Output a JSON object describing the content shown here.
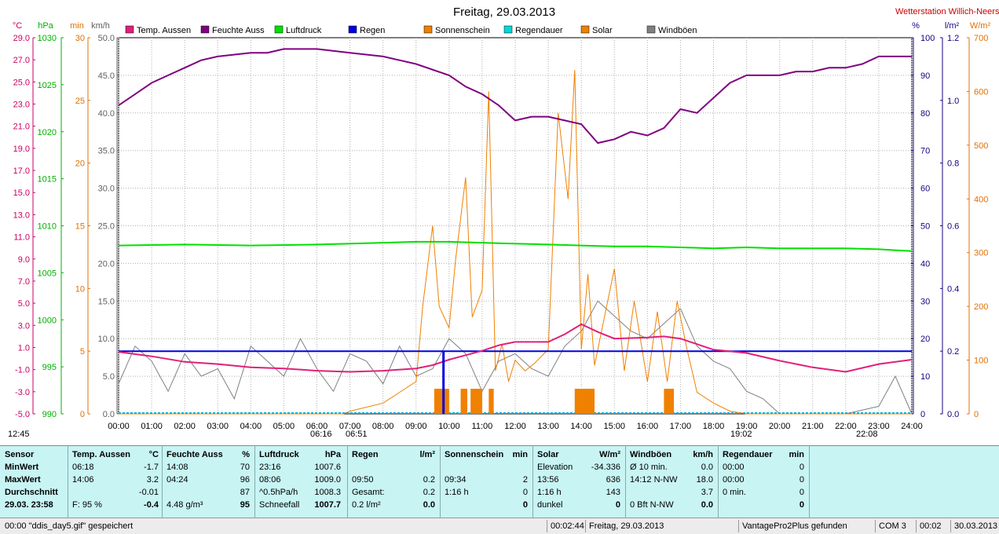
{
  "chart_data": {
    "type": "line",
    "title": "Freitag, 29.03.2013",
    "station": "Wetterstation Willich-Neersen",
    "x_ticks": [
      "00:00",
      "01:00",
      "02:00",
      "03:00",
      "04:00",
      "05:00",
      "06:00",
      "07:00",
      "08:00",
      "09:00",
      "10:00",
      "11:00",
      "12:00",
      "13:00",
      "14:00",
      "15:00",
      "16:00",
      "17:00",
      "18:00",
      "19:00",
      "20:00",
      "21:00",
      "22:00",
      "23:00",
      "24:00"
    ],
    "left_axes": [
      {
        "unit": "°C",
        "color": "#cc0066",
        "ticks": [
          "29.0",
          "27.0",
          "25.0",
          "23.0",
          "21.0",
          "19.0",
          "17.0",
          "15.0",
          "13.0",
          "11.0",
          "9.0",
          "7.0",
          "5.0",
          "3.0",
          "1.0",
          "-1.0",
          "-3.0",
          "-5.0"
        ]
      },
      {
        "unit": "hPa",
        "color": "#00b000",
        "ticks": [
          "1030",
          "1025",
          "1020",
          "1015",
          "1010",
          "1005",
          "1000",
          "995",
          "990"
        ]
      },
      {
        "unit": "min",
        "color": "#e07000",
        "ticks": [
          "30",
          "25",
          "20",
          "15",
          "10",
          "5",
          "0"
        ]
      },
      {
        "unit": "km/h",
        "color": "#606060",
        "ticks": [
          "50.0",
          "45.0",
          "40.0",
          "35.0",
          "30.0",
          "25.0",
          "20.0",
          "15.0",
          "10.0",
          "5.0",
          "0.0"
        ]
      }
    ],
    "right_axes": [
      {
        "unit": "%",
        "color": "#1a0080",
        "ticks": [
          "100",
          "90",
          "80",
          "70",
          "60",
          "50",
          "40",
          "30",
          "20",
          "10",
          "0"
        ]
      },
      {
        "unit": "l/m²",
        "color": "#1a0080",
        "ticks": [
          "1.2",
          "1.0",
          "0.8",
          "0.6",
          "0.4",
          "0.2",
          "0.0"
        ]
      },
      {
        "unit": "W/m²",
        "color": "#e07000",
        "ticks": [
          "700",
          "600",
          "500",
          "400",
          "300",
          "200",
          "100",
          "0"
        ]
      }
    ],
    "legend": [
      {
        "name": "Temp. Aussen",
        "color": "#e0207a"
      },
      {
        "name": "Feuchte Auss",
        "color": "#800080"
      },
      {
        "name": "Luftdruck",
        "color": "#00e000"
      },
      {
        "name": "Regen",
        "color": "#0000e0"
      },
      {
        "name": "Sonnenschein",
        "color": "#f08000"
      },
      {
        "name": "Regendauer",
        "color": "#00d8d8"
      },
      {
        "name": "Solar",
        "color": "#f08000"
      },
      {
        "name": "Windböen",
        "color": "#808080"
      }
    ],
    "series": [
      {
        "name": "Feuchte Auss",
        "unit": "%",
        "x": [
          0,
          0.5,
          1,
          1.5,
          2,
          2.5,
          3,
          4,
          4.5,
          5,
          5.5,
          6,
          7,
          8,
          9,
          10,
          10.5,
          11,
          11.5,
          12,
          12.5,
          13,
          13.5,
          14,
          14.5,
          15,
          15.5,
          16,
          16.5,
          17,
          17.5,
          18,
          18.5,
          19,
          20,
          20.5,
          21,
          21.5,
          22,
          22.5,
          23,
          24
        ],
        "y": [
          82,
          85,
          88,
          90,
          92,
          94,
          95,
          96,
          96,
          97,
          97,
          97,
          96,
          95,
          93,
          90,
          87,
          85,
          82,
          78,
          79,
          79,
          78,
          77,
          72,
          73,
          75,
          74,
          76,
          81,
          80,
          84,
          88,
          90,
          90,
          91,
          91,
          92,
          92,
          93,
          95,
          95
        ]
      },
      {
        "name": "Temp. Aussen",
        "unit": "°C",
        "x": [
          0,
          1,
          2,
          3,
          4,
          5,
          6,
          7,
          8,
          9,
          9.5,
          10,
          10.5,
          11,
          11.5,
          12,
          13,
          13.5,
          14,
          14.5,
          15,
          16,
          16.5,
          17,
          18,
          19,
          20,
          21,
          22,
          23,
          24
        ],
        "y": [
          0.6,
          0.2,
          -0.3,
          -0.5,
          -0.8,
          -0.9,
          -1.1,
          -1.2,
          -1.1,
          -0.9,
          -0.6,
          -0.1,
          0.3,
          0.7,
          1.2,
          1.5,
          1.5,
          2.2,
          3.1,
          2.4,
          1.8,
          1.9,
          2.0,
          1.8,
          0.8,
          0.5,
          -0.2,
          -0.8,
          -1.2,
          -0.5,
          -0.1
        ]
      },
      {
        "name": "Luftdruck",
        "unit": "hPa",
        "x": [
          0,
          2,
          4,
          6,
          8,
          9,
          10,
          11,
          12,
          13,
          14,
          15,
          16,
          17,
          18,
          19,
          20,
          21,
          22,
          23,
          24
        ],
        "y": [
          1007.9,
          1008.0,
          1007.9,
          1008.0,
          1008.2,
          1008.3,
          1008.3,
          1008.2,
          1008.1,
          1008.0,
          1007.9,
          1007.8,
          1007.8,
          1007.7,
          1007.6,
          1007.7,
          1007.6,
          1007.6,
          1007.6,
          1007.5,
          1007.3
        ]
      },
      {
        "name": "Solar",
        "unit": "W/m²",
        "x": [
          0,
          6.8,
          7,
          8,
          9,
          9.2,
          9.5,
          9.7,
          10,
          10.2,
          10.5,
          10.7,
          11,
          11.2,
          11.4,
          11.6,
          11.8,
          12,
          12.3,
          12.6,
          13,
          13.3,
          13.6,
          13.8,
          14,
          14.2,
          14.4,
          14.7,
          15,
          15.3,
          15.6,
          16,
          16.3,
          16.6,
          16.9,
          17.2,
          17.5,
          18,
          18.5,
          19,
          24
        ],
        "y": [
          0,
          0,
          5,
          20,
          60,
          200,
          350,
          200,
          160,
          290,
          440,
          180,
          230,
          600,
          80,
          130,
          60,
          100,
          80,
          95,
          120,
          560,
          400,
          640,
          120,
          260,
          90,
          180,
          270,
          80,
          210,
          60,
          190,
          60,
          210,
          120,
          40,
          20,
          5,
          0,
          0
        ]
      },
      {
        "name": "Regen",
        "unit": "l/m²",
        "x": [
          0,
          9.83,
          9.84,
          9.85,
          24
        ],
        "y": [
          0.2,
          0.2,
          0.2,
          0.2,
          0.2
        ]
      },
      {
        "name": "Sonnenschein",
        "unit": "min",
        "bars": [
          {
            "x": 9.55,
            "w": 0.45,
            "v": 2
          },
          {
            "x": 10.35,
            "w": 0.2,
            "v": 2
          },
          {
            "x": 10.65,
            "w": 0.35,
            "v": 2
          },
          {
            "x": 11.2,
            "w": 0.15,
            "v": 2
          },
          {
            "x": 13.8,
            "w": 0.6,
            "v": 2
          },
          {
            "x": 16.5,
            "w": 0.3,
            "v": 2
          }
        ]
      },
      {
        "name": "Windböen",
        "unit": "km/h",
        "x": [
          0,
          0.5,
          1,
          1.5,
          2,
          2.5,
          3,
          3.5,
          4,
          4.5,
          5,
          5.5,
          6,
          6.5,
          7,
          7.5,
          8,
          8.5,
          9,
          9.5,
          10,
          10.5,
          11,
          11.5,
          12,
          12.5,
          13,
          13.5,
          14,
          14.5,
          15,
          15.5,
          16,
          16.5,
          17,
          17.5,
          18,
          18.5,
          19,
          19.5,
          20,
          21,
          22,
          23,
          23.5,
          24
        ],
        "y": [
          4,
          9,
          7,
          3,
          8,
          5,
          6,
          2,
          9,
          7,
          5,
          10,
          6,
          3,
          8,
          7,
          4,
          9,
          5,
          6,
          10,
          8,
          3,
          7,
          8,
          6,
          5,
          9,
          11,
          15,
          13,
          11,
          10,
          12,
          14,
          9,
          7,
          6,
          3,
          2,
          0,
          0,
          0,
          1,
          5,
          0
        ]
      }
    ],
    "markers": [
      {
        "label": "12:45"
      },
      {
        "label": "06:16"
      },
      {
        "label": "06:51"
      },
      {
        "label": "19:02"
      },
      {
        "label": "22:08"
      }
    ]
  },
  "stats": {
    "rows": [
      "Sensor",
      "MinWert",
      "MaxWert",
      "Durchschnitt",
      "29.03. 23:58"
    ],
    "temp": {
      "title": "Temp. Aussen",
      "unit": "°C",
      "min": [
        "06:18",
        "-1.7"
      ],
      "max": [
        "14:06",
        "3.2"
      ],
      "avg": [
        "",
        "-0.01"
      ],
      "last": [
        "F: 95 %",
        "-0.4"
      ]
    },
    "feuchte": {
      "title": "Feuchte Auss",
      "unit": "%",
      "min": [
        "14:08",
        "70"
      ],
      "max": [
        "04:24",
        "96"
      ],
      "avg": [
        "",
        "87"
      ],
      "last": [
        "4.48 g/m³",
        "95"
      ]
    },
    "luftdruck": {
      "title": "Luftdruck",
      "unit": "hPa",
      "min": [
        "23:16",
        "1007.6"
      ],
      "max": [
        "08:06",
        "1009.0"
      ],
      "avg": [
        "^0.5hPa/h",
        "1008.3"
      ],
      "last": [
        "Schneefall",
        "1007.7"
      ]
    },
    "regen": {
      "title": "Regen",
      "unit": "l/m²",
      "min": [
        "",
        ""
      ],
      "max": [
        "09:50",
        "0.2"
      ],
      "avg": [
        "Gesamt:",
        "0.2"
      ],
      "last": [
        "0.2 l/m²",
        "0.0"
      ]
    },
    "sonne": {
      "title": "Sonnenschein",
      "unit": "min",
      "min": [
        "",
        ""
      ],
      "max": [
        "09:34",
        "2"
      ],
      "avg": [
        "1:16 h",
        "0"
      ],
      "last": [
        "",
        "0"
      ]
    },
    "solar": {
      "title": "Solar",
      "unit": "W/m²",
      "min": [
        "Elevation",
        "-34.336"
      ],
      "max": [
        "13:56",
        "636"
      ],
      "avg": [
        "1:16 h",
        "143"
      ],
      "last": [
        "dunkel",
        "0"
      ]
    },
    "wind": {
      "title": "Windböen",
      "unit": "km/h",
      "min": [
        "Ø 10 min.",
        "0.0"
      ],
      "max": [
        "14:12   N-NW",
        "18.0"
      ],
      "avg": [
        "",
        "3.7"
      ],
      "last": [
        "0 Bft N-NW",
        "0.0"
      ]
    },
    "regendauer": {
      "title": "Regendauer",
      "unit": "min",
      "min": [
        "00:00",
        "0"
      ],
      "max": [
        "00:00",
        "0"
      ],
      "avg": [
        "0 min.",
        "0"
      ],
      "last": [
        "",
        "0"
      ]
    }
  },
  "status": {
    "saved": "00:00  \"ddis_day5.gif\"  gespeichert",
    "time1": "00:02:44",
    "date": "Freitag, 29.03.2013",
    "device": "VantagePro2Plus gefunden",
    "port": "COM 3",
    "time2": "00:02",
    "date2": "30.03.2013"
  }
}
